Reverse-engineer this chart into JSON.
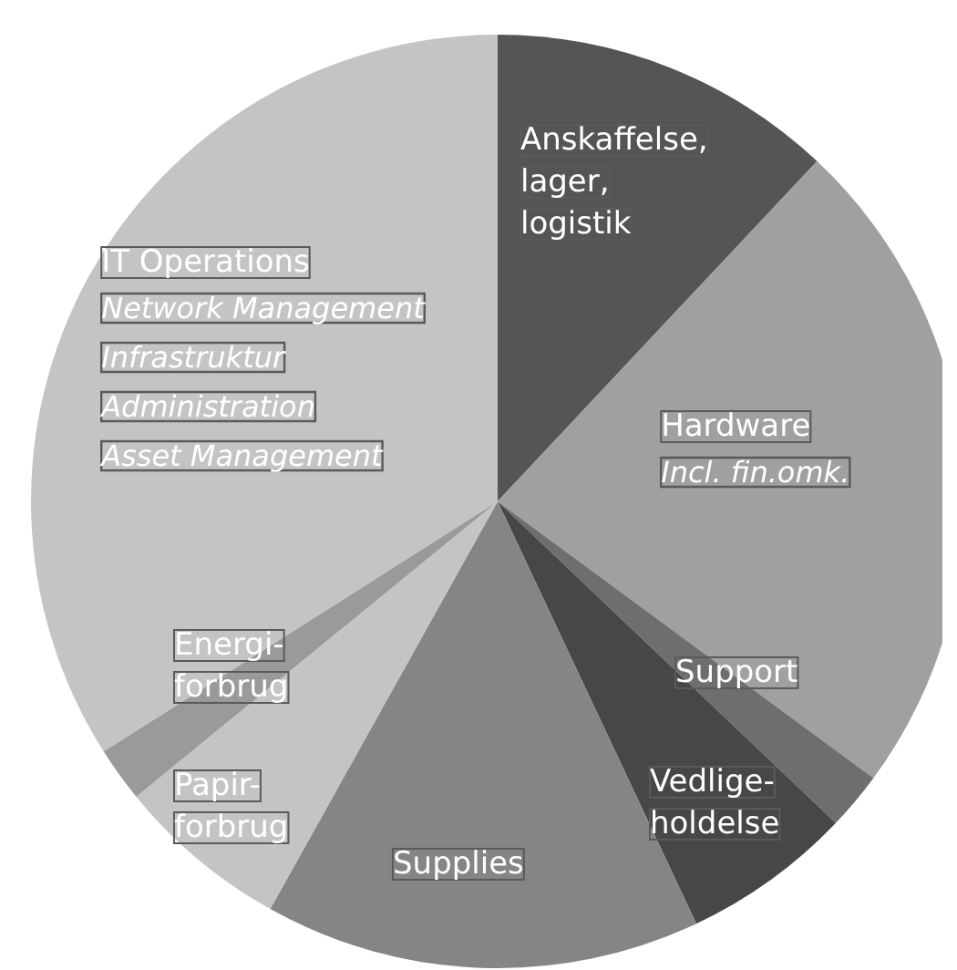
{
  "chart_data": {
    "type": "pie",
    "categories": [
      "Anskaffelse,\nlager,\nlogistik",
      "Hardware",
      "Support",
      "Vedlige-\nholdelse",
      "Supplies",
      "Papir-\nforbrug",
      "Energi-\nforbrug",
      "IT Operations"
    ],
    "values": [
      12.0,
      23.1,
      2.0,
      5.9,
      15.1,
      6.0,
      1.9,
      34.0
    ],
    "colors": [
      "#555555",
      "#a0a0a0",
      "#6e6e6e",
      "#474747",
      "#858585",
      "#c4c4c4",
      "#9a9a9a",
      "#c4c4c4"
    ],
    "annotations": [
      {
        "text": "Incl. fin.omk.",
        "x": "Hardware"
      },
      {
        "text": "Network Management\nInfrastruktur\nAdministration\nAsset Management",
        "x": "IT Operations"
      }
    ],
    "legend": false
  }
}
